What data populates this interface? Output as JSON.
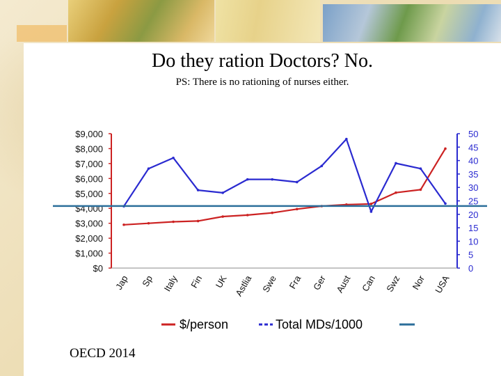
{
  "slide": {
    "title": "Do they ration Doctors? No.",
    "subtitle": "PS: There is no rationing of nurses either.",
    "source": "OECD 2014"
  },
  "chart_data": {
    "type": "line",
    "categories": [
      "Jap",
      "Sp",
      "Italy",
      "Fin",
      "UK",
      "Astlia",
      "Swe",
      "Fra",
      "Ger",
      "Aust",
      "Can",
      "Swz",
      "Nor",
      "USA"
    ],
    "series": [
      {
        "name": "$/person",
        "axis": "left",
        "color": "#cc2222",
        "values": [
          2900,
          3000,
          3100,
          3150,
          3450,
          3550,
          3700,
          3950,
          4150,
          4250,
          4300,
          5050,
          5250,
          8000
        ]
      },
      {
        "name": "Total MDs/1000",
        "axis": "right",
        "color": "#2a2ad0",
        "values": [
          23,
          37,
          41,
          29,
          28,
          33,
          33,
          32,
          38,
          48,
          21,
          39,
          37,
          24
        ]
      }
    ],
    "left_axis": {
      "ylim": [
        0,
        9000
      ],
      "ticks": [
        "$9,000",
        "$8,000",
        "$7,000",
        "$6,000",
        "$5,000",
        "$4,000",
        "$3,000",
        "$2,000",
        "$1,000",
        "$0"
      ]
    },
    "right_axis": {
      "ylim": [
        0,
        50
      ],
      "ticks": [
        "50",
        "45",
        "40",
        "35",
        "30",
        "25",
        "20",
        "15",
        "10",
        "5",
        "0"
      ]
    },
    "reference_line": {
      "axis": "left",
      "value": 4250,
      "color": "#2b6e9a"
    },
    "legend": [
      "$/person",
      "Total MDs/1000",
      ""
    ],
    "legend_position": "bottom"
  }
}
